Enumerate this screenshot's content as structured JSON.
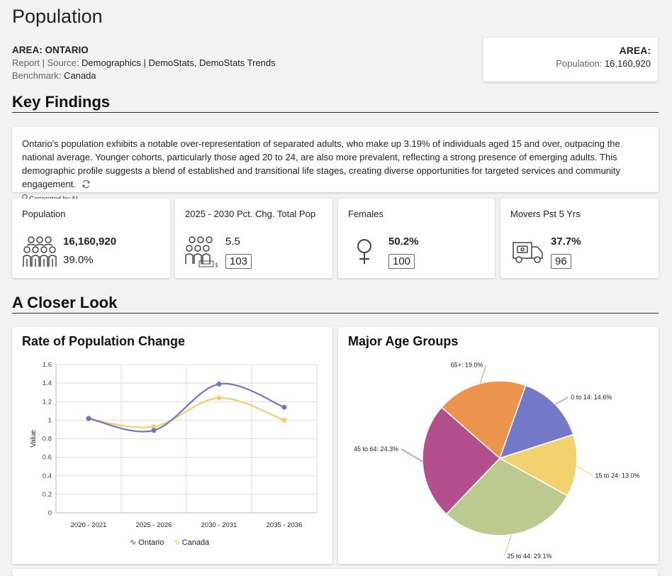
{
  "page": {
    "title": "Population",
    "area_line": "AREA: ONTARIO",
    "report_label": "Report",
    "source_sep": " | Source: ",
    "source_value": "Demographics | DemoStats, DemoStats Trends",
    "benchmark_label": "Benchmark: ",
    "benchmark_value": "Canada"
  },
  "area_card": {
    "title": "AREA:",
    "population_label": "Population:",
    "population_value": "16,160,920"
  },
  "sections": {
    "key_findings": "Key Findings",
    "closer_look": "A Closer Look"
  },
  "findings": {
    "text": "Ontario's population exhibits a notable over-representation of separated adults, who make up 3.19% of individuals aged 15 and over, outpacing the national average. Younger cohorts, particularly those aged 20 to 24, are also more prevalent, reflecting a strong presence of emerging adults. This demographic profile suggests a blend of established and transitional life stages, creating diverse opportunities for targeted services and community engagement.",
    "ai_note": "Generated by AI."
  },
  "stats": [
    {
      "label": "Population",
      "value": "16,160,920",
      "sub": "39.0%",
      "icon": "people-group-icon"
    },
    {
      "label": "2025 - 2030 Pct. Chg. Total Pop",
      "value": "5.5",
      "index": "103",
      "icon": "people-growth-icon"
    },
    {
      "label": "Females",
      "value": "50.2%",
      "index": "100",
      "icon": "female-icon"
    },
    {
      "label": "Movers Pst 5 Yrs",
      "value": "37.7%",
      "index": "96",
      "icon": "moving-truck-icon"
    }
  ],
  "colors": {
    "ontario": "#7173c2",
    "canada": "#f2cf6b"
  },
  "chart_data": [
    {
      "type": "line",
      "title": "Rate of Population Change",
      "ylabel": "Value",
      "xlabel": "",
      "categories": [
        "2020 - 2021",
        "2025 - 2026",
        "2030 - 2031",
        "2035 - 2036"
      ],
      "yticks": [
        "0",
        "0.2",
        "0.4",
        "0.6",
        "0.8",
        "1",
        "1.2",
        "1.4",
        "1.6"
      ],
      "ylim": [
        0,
        1.6
      ],
      "grid": true,
      "legend": "bottom",
      "series": [
        {
          "name": "Ontario",
          "values": [
            1.02,
            0.89,
            1.39,
            1.14
          ],
          "color": "#7173c2"
        },
        {
          "name": "Canada",
          "values": [
            1.01,
            0.93,
            1.24,
            1.0
          ],
          "color": "#f2cf6b"
        }
      ]
    },
    {
      "type": "pie",
      "title": "Major Age Groups",
      "slices": [
        {
          "label": "0 to 14: 14.6%",
          "value": 14.6,
          "color": "#7479c7"
        },
        {
          "label": "15 to 24: 13.0%",
          "value": 13.0,
          "color": "#f2d16f"
        },
        {
          "label": "25 to 44: 29.1%",
          "value": 29.1,
          "color": "#bcc98f"
        },
        {
          "label": "45 to 64: 24.3%",
          "value": 24.3,
          "color": "#b44f8e"
        },
        {
          "label": "65+: 19.0%",
          "value": 19.0,
          "color": "#ec934e"
        }
      ]
    }
  ]
}
